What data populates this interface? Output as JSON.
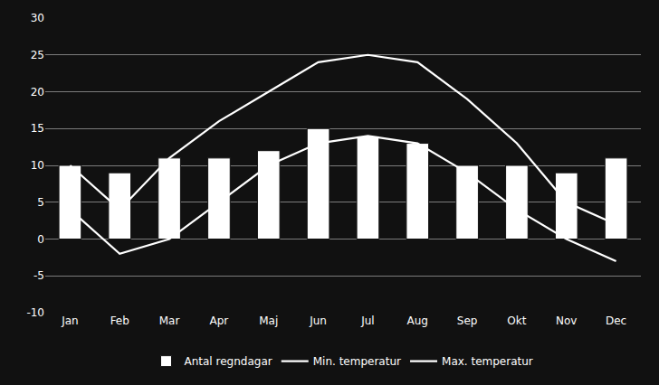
{
  "chart_data": {
    "type": "bar",
    "categories": [
      "Jan",
      "Feb",
      "Mar",
      "Apr",
      "Maj",
      "Jun",
      "Jul",
      "Aug",
      "Sep",
      "Okt",
      "Nov",
      "Dec"
    ],
    "series": [
      {
        "name": "Antal regndagar",
        "type": "bar",
        "color": "#ffffff",
        "values": [
          10,
          9,
          11,
          11,
          12,
          15,
          14,
          13,
          10,
          10,
          9,
          11
        ]
      },
      {
        "name": "Min. temperatur",
        "type": "line",
        "color": "#ffffff",
        "values": [
          4,
          -2,
          0,
          5,
          10,
          13,
          14,
          13,
          9,
          4,
          0,
          -3
        ]
      },
      {
        "name": "Max. temperatur",
        "type": "line",
        "color": "#ffffff",
        "values": [
          10,
          4,
          11,
          16,
          20,
          24,
          25,
          24,
          19,
          13,
          5,
          2
        ]
      }
    ],
    "ylim": [
      -10,
      30
    ],
    "yticks": [
      -10,
      -5,
      0,
      5,
      10,
      15,
      20,
      25,
      30
    ],
    "grid": true,
    "legend": "bottom"
  }
}
